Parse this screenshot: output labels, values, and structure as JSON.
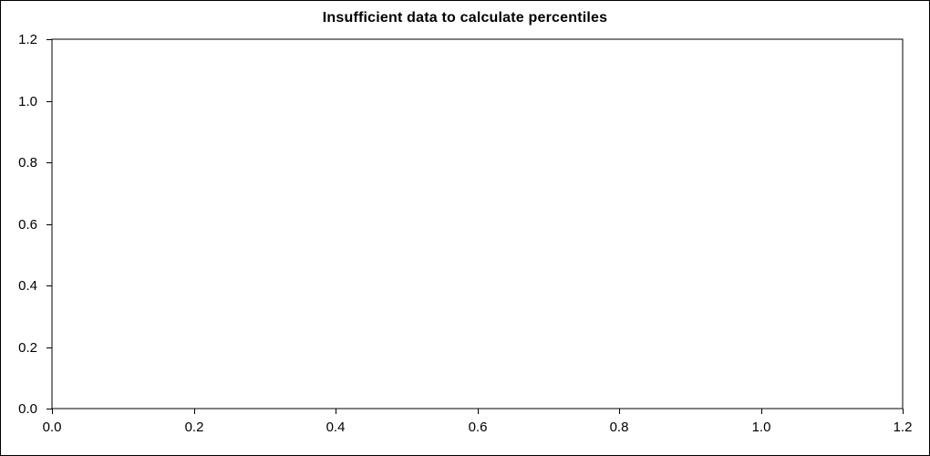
{
  "window": {
    "background_color": "#ffffff",
    "border_color": "#000000"
  },
  "chart_data": {
    "type": "line",
    "title": "Insufficient data to calculate percentiles",
    "series": [],
    "categories": [],
    "x_ticks": [
      0.0,
      0.2,
      0.4,
      0.6,
      0.8,
      1.0,
      1.2
    ],
    "y_ticks": [
      0.0,
      0.2,
      0.4,
      0.6,
      0.8,
      1.0,
      1.2
    ],
    "xlim": [
      0.0,
      1.2
    ],
    "ylim": [
      0.0,
      1.2
    ],
    "xlabel": "",
    "ylabel": "",
    "grid": false,
    "legend_position": "none",
    "tick_label_format": "1-decimal",
    "axis_color": "#000000",
    "text_color": "#000000"
  }
}
